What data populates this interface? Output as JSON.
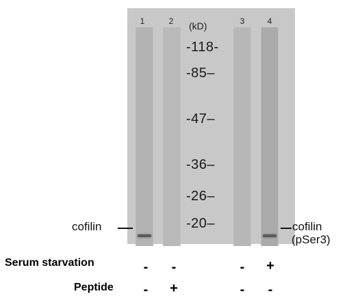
{
  "lanes": [
    "1",
    "2",
    "3",
    "4"
  ],
  "unit_label": "(kD)",
  "markers": [
    "-118-",
    "-85–",
    "-47–",
    "-36–",
    "-26–",
    "-20–"
  ],
  "left_band_label": "cofilin",
  "right_band_label_line1": "cofilin",
  "right_band_label_line2": "(pSer3)",
  "conditions": [
    {
      "label": "Serum starvation",
      "signs": [
        "-",
        "-",
        "-",
        "+"
      ]
    },
    {
      "label": "Peptide",
      "signs": [
        "-",
        "+",
        "-",
        "-"
      ]
    }
  ]
}
